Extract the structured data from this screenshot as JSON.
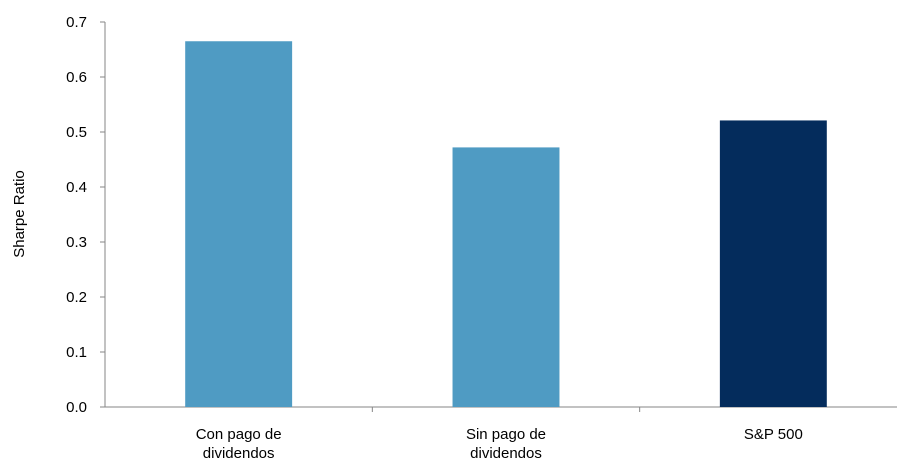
{
  "chart_data": {
    "type": "bar",
    "title": "",
    "xlabel": "",
    "ylabel": "Sharpe Ratio",
    "ylim": [
      0,
      0.7
    ],
    "yticks": [
      "0.0",
      "0.1",
      "0.2",
      "0.3",
      "0.4",
      "0.5",
      "0.6",
      "0.7"
    ],
    "categories": [
      [
        "Con pago de",
        "dividendos"
      ],
      [
        "Sin pago de",
        "dividendos"
      ],
      [
        "S&P 500"
      ]
    ],
    "values": [
      0.665,
      0.472,
      0.521
    ],
    "colors": [
      "#4F9BC3",
      "#4F9BC3",
      "#042C5C"
    ],
    "grid": false,
    "legend": "none"
  }
}
